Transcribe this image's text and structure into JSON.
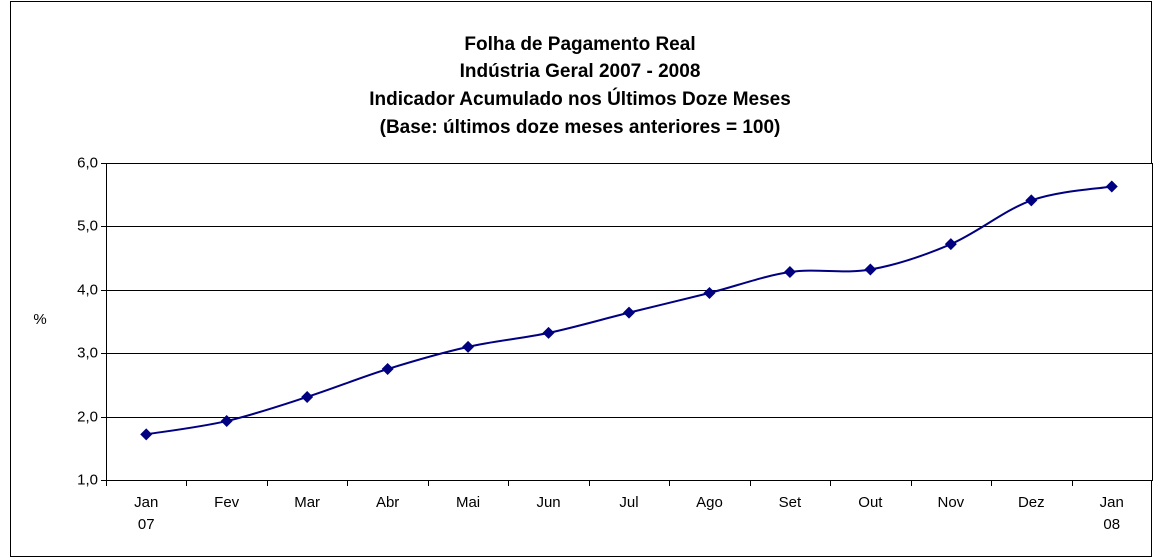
{
  "chart_data": {
    "type": "line",
    "title": [
      "Folha de Pagamento Real",
      "Indústria Geral 2007 - 2008",
      "Indicador Acumulado nos Últimos Doze Meses",
      "(Base: últimos doze meses anteriores = 100)"
    ],
    "y_label": "%",
    "categories": [
      "Jan\n07",
      "Fev",
      "Mar",
      "Abr",
      "Mai",
      "Jun",
      "Jul",
      "Ago",
      "Set",
      "Out",
      "Nov",
      "Dez",
      "Jan\n08"
    ],
    "series": [
      {
        "name": "Folha de Pagamento Real",
        "color": "#000080",
        "values": [
          1.72,
          1.93,
          2.31,
          2.75,
          3.1,
          3.32,
          3.64,
          3.95,
          4.28,
          4.32,
          4.72,
          5.41,
          5.63
        ]
      }
    ],
    "ylim": [
      1,
      6
    ],
    "yticks": [
      {
        "value": 1,
        "label": "1,0"
      },
      {
        "value": 2,
        "label": "2,0"
      },
      {
        "value": 3,
        "label": "3,0"
      },
      {
        "value": 4,
        "label": "4,0"
      },
      {
        "value": 5,
        "label": "5,0"
      },
      {
        "value": 6,
        "label": "6,0"
      }
    ],
    "grid": true,
    "smooth": true
  }
}
